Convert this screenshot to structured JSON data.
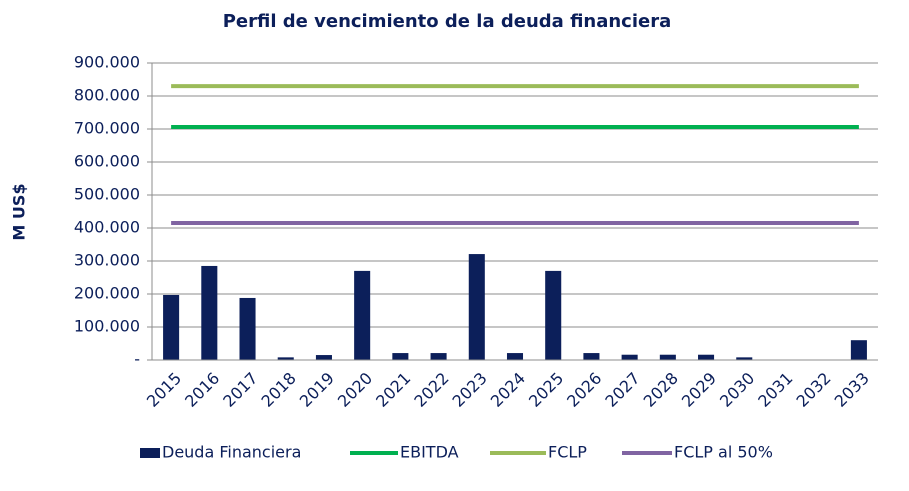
{
  "chart_data": {
    "type": "bar",
    "title": "Perfil de vencimiento de la deuda financiera",
    "y_label": "M US$",
    "categories": [
      "2015",
      "2016",
      "2017",
      "2018",
      "2019",
      "2020",
      "2021",
      "2022",
      "2023",
      "2024",
      "2025",
      "2026",
      "2027",
      "2028",
      "2029",
      "2030",
      "2031",
      "2032",
      "2033"
    ],
    "series": [
      {
        "name": "Deuda Financiera",
        "type": "bar",
        "color": "#0c1f5a",
        "values": [
          197000,
          285000,
          188000,
          8000,
          15000,
          270000,
          21000,
          21000,
          321000,
          21000,
          270000,
          21000,
          16000,
          16000,
          16000,
          8000,
          0,
          0,
          60000
        ]
      },
      {
        "name": "EBITDA",
        "type": "line",
        "color": "#00b050",
        "values": [
          706000,
          706000,
          706000,
          706000,
          706000,
          706000,
          706000,
          706000,
          706000,
          706000,
          706000,
          706000,
          706000,
          706000,
          706000,
          706000,
          706000,
          706000,
          706000
        ]
      },
      {
        "name": "FCLP",
        "type": "line",
        "color": "#9bbb59",
        "values": [
          830000,
          830000,
          830000,
          830000,
          830000,
          830000,
          830000,
          830000,
          830000,
          830000,
          830000,
          830000,
          830000,
          830000,
          830000,
          830000,
          830000,
          830000,
          830000
        ]
      },
      {
        "name": "FCLP al 50%",
        "type": "line",
        "color": "#8064a2",
        "values": [
          415000,
          415000,
          415000,
          415000,
          415000,
          415000,
          415000,
          415000,
          415000,
          415000,
          415000,
          415000,
          415000,
          415000,
          415000,
          415000,
          415000,
          415000,
          415000
        ]
      }
    ],
    "ylim": [
      0,
      900000
    ],
    "yticks": [
      {
        "value": 0,
        "label": "-"
      },
      {
        "value": 100000,
        "label": "100.000"
      },
      {
        "value": 200000,
        "label": "200.000"
      },
      {
        "value": 300000,
        "label": "300.000"
      },
      {
        "value": 400000,
        "label": "400.000"
      },
      {
        "value": 500000,
        "label": "500.000"
      },
      {
        "value": 600000,
        "label": "600.000"
      },
      {
        "value": 700000,
        "label": "700.000"
      },
      {
        "value": 800000,
        "label": "800.000"
      },
      {
        "value": 900000,
        "label": "900.000"
      }
    ],
    "grid": true,
    "legend": "bottom"
  }
}
